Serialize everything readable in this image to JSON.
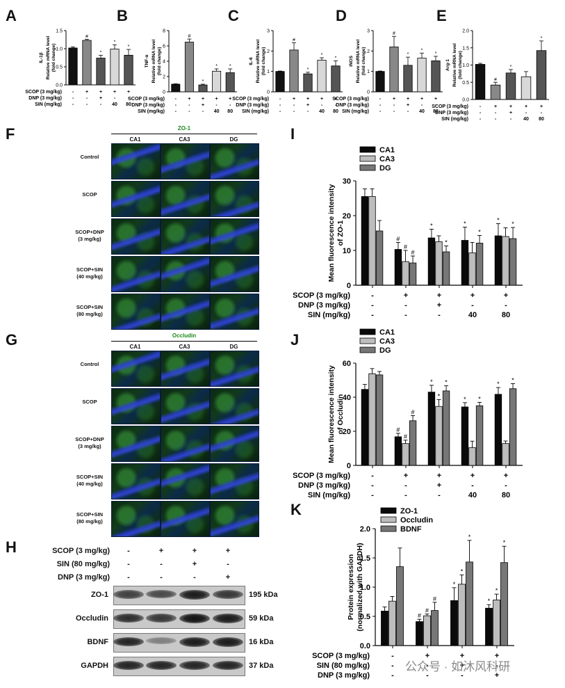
{
  "panels": {
    "A": "A",
    "B": "B",
    "C": "C",
    "D": "D",
    "E": "E",
    "F": "F",
    "G": "G",
    "H": "H",
    "I": "I",
    "J": "J",
    "K": "K"
  },
  "small_conditions": {
    "rows": [
      "SCOP (3 mg/kg)",
      "DNP (3 mg/kg)",
      "SIN (mg/kg)"
    ],
    "values": [
      [
        "-",
        "+",
        "+",
        "+",
        "+"
      ],
      [
        "-",
        "-",
        "+",
        "-",
        "-"
      ],
      [
        "-",
        "-",
        "-",
        "40",
        "80"
      ]
    ]
  },
  "chart_data": [
    {
      "id": "A",
      "type": "bar",
      "ylabel": "Relative mRNA level\n(fold change)",
      "ytitle": "IL-1β",
      "ylim": [
        0,
        1.5
      ],
      "ticks": [
        "0.0",
        "0.5",
        "1.0",
        "1.5"
      ],
      "values": [
        1.02,
        1.23,
        0.74,
        0.99,
        0.82
      ],
      "errors": [
        0.03,
        0.03,
        0.08,
        0.12,
        0.16
      ],
      "marks": [
        "",
        "#",
        "*",
        "*",
        "*"
      ],
      "colors": [
        "#111111",
        "#888888",
        "#555555",
        "#d8d8d8",
        "#555555"
      ]
    },
    {
      "id": "B",
      "type": "bar",
      "ylabel": "Relative mRNA level\n(fold change)",
      "ytitle": "TNF-α",
      "ylim": [
        0,
        8
      ],
      "ticks": [
        "0",
        "2",
        "4",
        "6",
        "8"
      ],
      "values": [
        1.0,
        6.5,
        0.9,
        2.7,
        2.5
      ],
      "errors": [
        0.05,
        0.4,
        0.1,
        0.3,
        0.5
      ],
      "marks": [
        "",
        "#",
        "*",
        "*",
        "*"
      ],
      "colors": [
        "#111111",
        "#888888",
        "#555555",
        "#d8d8d8",
        "#555555"
      ]
    },
    {
      "id": "C",
      "type": "bar",
      "ylabel": "Relative mRNA level\n(fold change)",
      "ytitle": "IL-6",
      "ylim": [
        0,
        3
      ],
      "ticks": [
        "0",
        "1",
        "2",
        "3"
      ],
      "values": [
        1.0,
        2.05,
        0.88,
        1.55,
        1.27
      ],
      "errors": [
        0.02,
        0.35,
        0.08,
        0.12,
        0.25
      ],
      "marks": [
        "",
        "#",
        "*",
        "*",
        "*"
      ],
      "colors": [
        "#111111",
        "#888888",
        "#555555",
        "#d8d8d8",
        "#555555"
      ]
    },
    {
      "id": "D",
      "type": "bar",
      "ylabel": "Relative mRNA level\n(fold change)",
      "ytitle": "iNOS",
      "ylim": [
        0,
        3
      ],
      "ticks": [
        "0",
        "1",
        "2",
        "3"
      ],
      "values": [
        1.0,
        2.2,
        1.3,
        1.65,
        1.52
      ],
      "errors": [
        0.02,
        0.52,
        0.4,
        0.25,
        0.22
      ],
      "marks": [
        "",
        "#",
        "*",
        "*",
        "*"
      ],
      "colors": [
        "#111111",
        "#888888",
        "#555555",
        "#d8d8d8",
        "#555555"
      ]
    },
    {
      "id": "E",
      "type": "bar",
      "ylabel": "Relative mRNA level\n(fold change)",
      "ytitle": "Arg-1",
      "ylim": [
        0,
        2.0
      ],
      "ticks": [
        "0.0",
        "0.5",
        "1.0",
        "1.5",
        "2.0"
      ],
      "values": [
        1.02,
        0.42,
        0.77,
        0.66,
        1.42
      ],
      "errors": [
        0.03,
        0.08,
        0.1,
        0.15,
        0.28
      ],
      "marks": [
        "",
        "#",
        "*",
        "",
        "*"
      ],
      "colors": [
        "#111111",
        "#888888",
        "#555555",
        "#d8d8d8",
        "#555555"
      ]
    },
    {
      "id": "I",
      "type": "bar",
      "ylabel": "Mean fluorescence intensity\nof ZO-1",
      "ylim": [
        0,
        30
      ],
      "ticks": [
        "0",
        "10",
        "20",
        "30"
      ],
      "series": [
        {
          "name": "CA1",
          "values": [
            25.5,
            10.3,
            13.6,
            12.9,
            14.2
          ],
          "errors": [
            2.2,
            2.0,
            2.5,
            3.8,
            3.5
          ],
          "marks": [
            "",
            "#",
            "*",
            "*",
            "*"
          ]
        },
        {
          "name": "CA3",
          "values": [
            25.5,
            6.8,
            12.5,
            9.3,
            14.0
          ],
          "errors": [
            2.2,
            3.2,
            1.7,
            3.0,
            2.5
          ],
          "marks": [
            "",
            "#",
            "",
            "",
            ""
          ]
        },
        {
          "name": "DG",
          "values": [
            15.6,
            6.4,
            9.6,
            12.1,
            13.4
          ],
          "errors": [
            3.0,
            2.0,
            1.7,
            2.2,
            3.2
          ],
          "marks": [
            "",
            "#",
            "*",
            "*",
            "*"
          ]
        }
      ],
      "legend": [
        "CA1",
        "CA3",
        "DG"
      ]
    },
    {
      "id": "J",
      "type": "bar",
      "ylabel": "Mean fluorescence intensity\nof Occludin",
      "ylim": [
        0,
        60
      ],
      "ticks": [
        "0",
        "20",
        "40",
        "60"
      ],
      "series": [
        {
          "name": "CA1",
          "values": [
            44.6,
            16.8,
            43.0,
            34.3,
            41.7
          ],
          "errors": [
            2.9,
            2.0,
            4.0,
            2.5,
            4.0
          ],
          "marks": [
            "",
            "#",
            "*",
            "*",
            "*"
          ]
        },
        {
          "name": "CA3",
          "values": [
            53.8,
            12.8,
            34.6,
            10.4,
            12.8
          ],
          "errors": [
            3.0,
            2.0,
            4.0,
            3.8,
            1.5
          ],
          "marks": [
            "",
            "#",
            "*",
            "",
            ""
          ]
        },
        {
          "name": "DG",
          "values": [
            53.1,
            26.2,
            43.7,
            35.0,
            45.0
          ],
          "errors": [
            2.0,
            3.0,
            3.0,
            2.0,
            3.0
          ],
          "marks": [
            "",
            "#",
            "*",
            "*",
            "*"
          ]
        }
      ],
      "legend": [
        "CA1",
        "CA3",
        "DG"
      ]
    },
    {
      "id": "K",
      "type": "bar",
      "ylabel": "Protein expression\n(normalized with GAPDH)",
      "ylim": [
        0,
        2.0
      ],
      "ticks": [
        "0.0",
        "0.5",
        "1.0",
        "1.5",
        "2.0"
      ],
      "series": [
        {
          "name": "ZO-1",
          "values": [
            0.59,
            0.41,
            0.77,
            0.64
          ],
          "errors": [
            0.07,
            0.04,
            0.22,
            0.06
          ],
          "marks": [
            "",
            "#",
            "*",
            "*"
          ]
        },
        {
          "name": "Occludin",
          "values": [
            0.76,
            0.51,
            1.05,
            0.78
          ],
          "errors": [
            0.08,
            0.03,
            0.16,
            0.1
          ],
          "marks": [
            "",
            "#",
            "*",
            "*"
          ]
        },
        {
          "name": "BDNF",
          "values": [
            1.35,
            0.6,
            1.43,
            1.42
          ],
          "errors": [
            0.32,
            0.14,
            0.37,
            0.28
          ],
          "marks": [
            "",
            "#",
            "*",
            "*"
          ]
        }
      ],
      "legend": [
        "ZO-1",
        "Occludin",
        "BDNF"
      ]
    }
  ],
  "big_conditions": {
    "rows": [
      "SCOP (3 mg/kg)",
      "DNP (3 mg/kg)",
      "SIN (mg/kg)"
    ],
    "values": [
      [
        "-",
        "+",
        "+",
        "+",
        "+"
      ],
      [
        "-",
        "-",
        "+",
        "-",
        "-"
      ],
      [
        "-",
        "-",
        "-",
        "40",
        "80"
      ]
    ]
  },
  "k_conditions": {
    "rows": [
      "SCOP (3 mg/kg)",
      "SIN (80 mg/kg)",
      "DNP (3 mg/kg)"
    ],
    "values": [
      [
        "-",
        "+",
        "+",
        "+"
      ],
      [
        "-",
        "-",
        "+",
        "-"
      ],
      [
        "-",
        "-",
        "-",
        "+"
      ]
    ]
  },
  "panelF": {
    "title": "ZO-1",
    "cols": [
      "CA1",
      "CA3",
      "DG"
    ],
    "rows": [
      "Control",
      "SCOP",
      "SCOP+DNP\n(3 mg/kg)",
      "SCOP+SIN\n(40 mg/kg)",
      "SCOP+SIN\n(80 mg/kg)"
    ]
  },
  "panelG": {
    "title": "Occludin",
    "cols": [
      "CA1",
      "CA3",
      "DG"
    ],
    "rows": [
      "Control",
      "SCOP",
      "SCOP+DNP\n(3 mg/kg)",
      "SCOP+SIN\n(40 mg/kg)",
      "SCOP+SIN\n(80 mg/kg)"
    ]
  },
  "panelH": {
    "conditions": [
      "SCOP (3 mg/kg)",
      "SIN (80 mg/kg)",
      "DNP (3 mg/kg)"
    ],
    "values": [
      [
        "-",
        "+",
        "+",
        "+"
      ],
      [
        "-",
        "-",
        "+",
        "-"
      ],
      [
        "-",
        "-",
        "-",
        "+"
      ]
    ],
    "blots": [
      {
        "name": "ZO-1",
        "kda": "195 kDa"
      },
      {
        "name": "Occludin",
        "kda": "59 kDa"
      },
      {
        "name": "BDNF",
        "kda": "16 kDa"
      },
      {
        "name": "GAPDH",
        "kda": "37 kDa"
      }
    ]
  },
  "watermark": "公众号 · 如沐风科研"
}
